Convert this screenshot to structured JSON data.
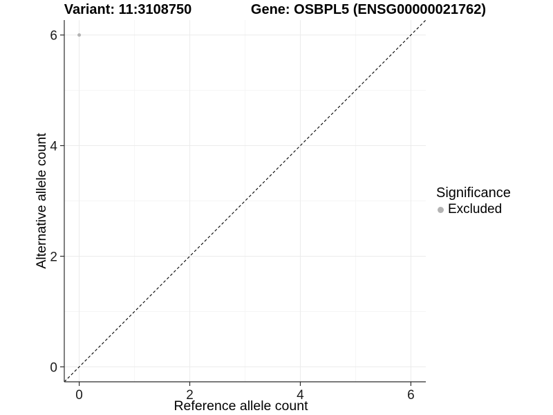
{
  "figure": {
    "titles": {
      "variant": "Variant: 11:3108750",
      "gene": "Gene: OSBPL5 (ENSG00000021762)"
    }
  },
  "legend": {
    "title": "Significance",
    "items": [
      {
        "label": "Excluded",
        "color": "#b3b3b3"
      }
    ]
  },
  "chart_data": {
    "type": "scatter",
    "title_left": "Variant: 11:3108750",
    "title_right": "Gene: OSBPL5 (ENSG00000021762)",
    "xlabel": "Reference allele count",
    "ylabel": "Alternative allele count",
    "xlim": [
      -0.27,
      6.27
    ],
    "ylim": [
      -0.27,
      6.27
    ],
    "xticks": [
      "0",
      "2",
      "4",
      "6"
    ],
    "xtick_values": [
      0,
      2,
      4,
      6
    ],
    "yticks": [
      "0",
      "2",
      "4",
      "6"
    ],
    "ytick_values": [
      0,
      2,
      4,
      6
    ],
    "minor_gridlines": [
      1,
      3,
      5
    ],
    "grid": "major and minor, light grey on white",
    "legend_position": "right",
    "series": [
      {
        "name": "Excluded",
        "color": "#b3b3b3",
        "points": [
          {
            "x": 0,
            "y": 6
          }
        ]
      }
    ],
    "reference_line": {
      "type": "identity y=x",
      "style": "dashed",
      "color": "#000000"
    }
  },
  "colors": {
    "background": "#ffffff",
    "grid_major": "#ebebeb",
    "grid_minor": "#f5f5f5",
    "axis_line": "#2b2b2b",
    "tick_text": "#1a1a1a",
    "text": "#000000",
    "point": "#b3b3b3"
  }
}
